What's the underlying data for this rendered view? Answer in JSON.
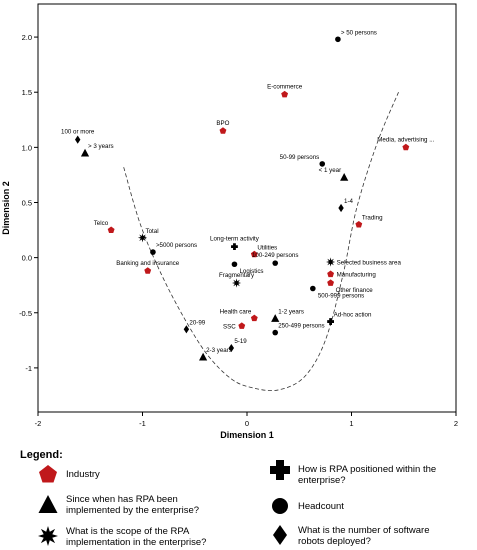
{
  "chart_data": {
    "type": "scatter",
    "title": "",
    "xlabel": "Dimension 1",
    "ylabel": "Dimension 2",
    "xlim": [
      -2,
      2
    ],
    "ylim": [
      -1.4,
      2.3
    ],
    "x_ticks": [
      -2,
      -1,
      0,
      1,
      2
    ],
    "x_tick_labels": [
      "-2",
      "-1",
      "0",
      "1",
      "2"
    ],
    "y_ticks": [
      -1,
      -0.5,
      0,
      0.5,
      1,
      1.5,
      2
    ],
    "y_tick_labels": [
      "-1",
      "-0.5",
      "0.0",
      "0.5",
      "1.0",
      "1.5",
      "2.0"
    ],
    "grid": false,
    "legend_placement": "bottom",
    "curve": {
      "style": "dashed",
      "points": [
        [
          -1.18,
          0.82
        ],
        [
          -1.02,
          0.3
        ],
        [
          -0.82,
          -0.15
        ],
        [
          -0.6,
          -0.55
        ],
        [
          -0.38,
          -0.88
        ],
        [
          -0.15,
          -1.1
        ],
        [
          0.05,
          -1.18
        ],
        [
          0.3,
          -1.2
        ],
        [
          0.55,
          -1.08
        ],
        [
          0.75,
          -0.75
        ],
        [
          0.92,
          -0.15
        ],
        [
          1.05,
          0.45
        ],
        [
          1.25,
          1.05
        ],
        [
          1.45,
          1.5
        ]
      ]
    },
    "series": [
      {
        "name": "Industry",
        "marker": "pentagon",
        "color": "#c0181b",
        "points": [
          {
            "label": "E-commerce",
            "x": 0.36,
            "y": 1.48,
            "label_pos": "above"
          },
          {
            "label": "BPO",
            "x": -0.23,
            "y": 1.15,
            "label_pos": "above"
          },
          {
            "label": "Media, advertising ...",
            "x": 1.52,
            "y": 1.0,
            "label_pos": "above"
          },
          {
            "label": "Telco",
            "x": -1.3,
            "y": 0.25,
            "label_pos": "aboveleft"
          },
          {
            "label": "Trading",
            "x": 1.07,
            "y": 0.3,
            "label_pos": "aboveright"
          },
          {
            "label": "Banking and insurance",
            "x": -0.95,
            "y": -0.12,
            "label_pos": "above"
          },
          {
            "label": "Utilities",
            "x": 0.07,
            "y": 0.03,
            "label_pos": "aboveright"
          },
          {
            "label": "Manufacturing",
            "x": 0.8,
            "y": -0.15,
            "label_pos": "right"
          },
          {
            "label": "Other finance",
            "x": 0.8,
            "y": -0.23,
            "label_pos": "belowright"
          },
          {
            "label": "Health care",
            "x": 0.07,
            "y": -0.55,
            "label_pos": "aboveleft"
          },
          {
            "label": "SSC",
            "x": -0.05,
            "y": -0.62,
            "label_pos": "left"
          }
        ]
      },
      {
        "name": "Since when has RPA been implemented by the enterprise?",
        "marker": "triangle",
        "color": "#000000",
        "points": [
          {
            "label": "> 3 years",
            "x": -1.55,
            "y": 0.95,
            "label_pos": "aboveright"
          },
          {
            "label": "< 1 year",
            "x": 0.93,
            "y": 0.73,
            "label_pos": "aboveleft"
          },
          {
            "label": "1-2 years",
            "x": 0.27,
            "y": -0.55,
            "label_pos": "aboveright"
          },
          {
            "label": "2-3 years",
            "x": -0.42,
            "y": -0.9,
            "label_pos": "aboveright"
          }
        ]
      },
      {
        "name": "What is the scope of the RPA implementation in the enterprise?",
        "marker": "star",
        "color": "#000000",
        "points": [
          {
            "label": "Total",
            "x": -1.0,
            "y": 0.18,
            "label_pos": "aboveright"
          },
          {
            "label": "Fragmentary",
            "x": -0.1,
            "y": -0.23,
            "label_pos": "above"
          },
          {
            "label": "Selected business area",
            "x": 0.8,
            "y": -0.04,
            "label_pos": "right"
          }
        ]
      },
      {
        "name": "How is RPA positioned within the enterprise?",
        "marker": "cross",
        "color": "#000000",
        "points": [
          {
            "label": "Long-term activity",
            "x": -0.12,
            "y": 0.1,
            "label_pos": "above"
          },
          {
            "label": "Ad-hoc action",
            "x": 0.8,
            "y": -0.58,
            "label_pos": "aboveright"
          }
        ]
      },
      {
        "name": "Headcount",
        "marker": "circle",
        "color": "#000000",
        "points": [
          {
            "label": "> 50 persons",
            "x": 0.87,
            "y": 1.98,
            "label_pos": "aboveright"
          },
          {
            "label": "50-99 persons",
            "x": 0.72,
            "y": 0.85,
            "label_pos": "aboveleft"
          },
          {
            "label": ">5000 persons",
            "x": -0.9,
            "y": 0.05,
            "label_pos": "aboveright"
          },
          {
            "label": "100-249 persons",
            "x": 0.27,
            "y": -0.05,
            "label_pos": "above"
          },
          {
            "label": "500-999 persons",
            "x": 0.63,
            "y": -0.28,
            "label_pos": "belowright"
          },
          {
            "label": "Logistics",
            "x": -0.12,
            "y": -0.06,
            "label_pos": "belowright"
          },
          {
            "label": "250-499 persons",
            "x": 0.27,
            "y": -0.68,
            "label_pos": "aboveright"
          }
        ]
      },
      {
        "name": "What is the number of software robots deployed?",
        "marker": "diamond",
        "color": "#000000",
        "points": [
          {
            "label": "100 or more",
            "x": -1.62,
            "y": 1.07,
            "label_pos": "above"
          },
          {
            "label": "1-4",
            "x": 0.9,
            "y": 0.45,
            "label_pos": "aboveright"
          },
          {
            "label": "20-99",
            "x": -0.58,
            "y": -0.65,
            "label_pos": "aboveright"
          },
          {
            "label": "5-19",
            "x": -0.15,
            "y": -0.82,
            "label_pos": "aboveright"
          }
        ]
      }
    ]
  },
  "legend": {
    "title": "Legend:",
    "items": [
      {
        "marker": "pentagon",
        "color": "#c0181b",
        "icon": "pentagon-icon",
        "text": "Industry"
      },
      {
        "marker": "triangle",
        "color": "#000000",
        "icon": "triangle-icon",
        "text": "Since when has RPA been implemented by the enterprise?"
      },
      {
        "marker": "star",
        "color": "#000000",
        "icon": "star-icon",
        "text": "What is the scope of the RPA implementation in the enterprise?"
      },
      {
        "marker": "cross",
        "color": "#000000",
        "icon": "cross-icon",
        "text": "How is RPA positioned within the enterprise?"
      },
      {
        "marker": "circle",
        "color": "#000000",
        "icon": "circle-icon",
        "text": "Headcount"
      },
      {
        "marker": "diamond",
        "color": "#000000",
        "icon": "diamond-icon",
        "text": "What is the number of software robots deployed?"
      }
    ]
  }
}
